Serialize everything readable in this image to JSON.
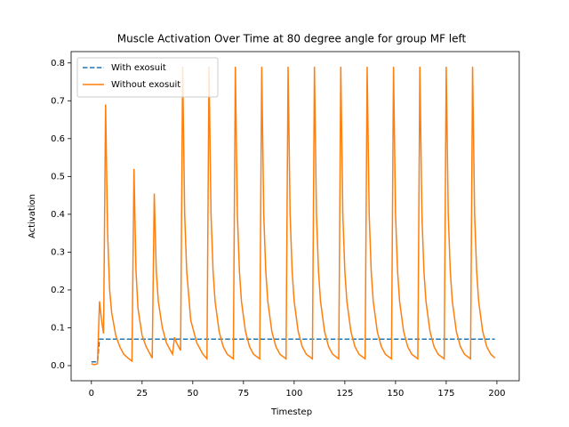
{
  "chart_data": {
    "type": "line",
    "title": "Muscle Activation Over Time at 80 degree angle for group MF left",
    "x_label": "Timestep",
    "y_label": "Activation",
    "xlim": [
      -10,
      211
    ],
    "ylim": [
      -0.04,
      0.83
    ],
    "xticks": [
      0,
      25,
      50,
      75,
      100,
      125,
      150,
      175,
      200
    ],
    "yticks": [
      {
        "value": 0,
        "label": "0.0"
      },
      0.1,
      0.2,
      0.3,
      0.4,
      0.5,
      0.6,
      0.7,
      0.8
    ],
    "legend": "upper left",
    "series": [
      {
        "name": "With exosuit",
        "color": "#1f77b4",
        "dash": true,
        "x": [
          0,
          3,
          4,
          199
        ],
        "values": [
          0.01,
          0.01,
          0.07,
          0.07
        ]
      },
      {
        "name": "Without exosuit",
        "color": "#ff7f0e",
        "dash": false,
        "x": [
          0,
          1,
          2,
          3,
          4,
          5,
          6,
          7,
          8,
          9,
          10,
          12,
          14,
          16,
          18,
          20,
          21,
          22,
          23,
          25,
          27,
          30,
          31,
          32,
          33,
          35,
          37,
          40,
          41,
          42,
          44,
          45,
          46,
          47,
          49,
          52,
          55,
          57,
          58,
          59,
          60,
          61,
          63,
          65,
          67,
          70,
          71,
          72,
          73,
          74,
          76,
          78,
          80,
          83,
          84,
          85,
          86,
          87,
          89,
          91,
          93,
          96,
          97,
          98,
          99,
          100,
          102,
          104,
          106,
          109,
          110,
          111,
          112,
          113,
          115,
          117,
          119,
          122,
          123,
          124,
          125,
          126,
          128,
          130,
          132,
          135,
          136,
          137,
          138,
          139,
          141,
          143,
          145,
          148,
          149,
          150,
          151,
          152,
          154,
          156,
          158,
          161,
          162,
          163,
          164,
          165,
          167,
          169,
          171,
          174,
          175,
          176,
          177,
          178,
          180,
          182,
          184,
          187,
          188,
          189,
          190,
          191,
          193,
          195,
          197,
          199
        ],
        "values": [
          0.005,
          0.003,
          0.003,
          0.005,
          0.17,
          0.12,
          0.085,
          0.69,
          0.35,
          0.2,
          0.14,
          0.08,
          0.05,
          0.03,
          0.02,
          0.012,
          0.52,
          0.25,
          0.15,
          0.08,
          0.05,
          0.02,
          0.455,
          0.25,
          0.17,
          0.1,
          0.06,
          0.03,
          0.075,
          0.06,
          0.04,
          0.79,
          0.4,
          0.25,
          0.12,
          0.06,
          0.03,
          0.018,
          0.79,
          0.4,
          0.25,
          0.17,
          0.09,
          0.05,
          0.03,
          0.018,
          0.79,
          0.4,
          0.25,
          0.17,
          0.09,
          0.05,
          0.03,
          0.018,
          0.79,
          0.4,
          0.25,
          0.17,
          0.09,
          0.05,
          0.03,
          0.018,
          0.79,
          0.4,
          0.25,
          0.17,
          0.09,
          0.05,
          0.03,
          0.018,
          0.79,
          0.4,
          0.25,
          0.17,
          0.09,
          0.05,
          0.03,
          0.018,
          0.79,
          0.4,
          0.25,
          0.17,
          0.09,
          0.05,
          0.03,
          0.018,
          0.79,
          0.4,
          0.25,
          0.17,
          0.09,
          0.05,
          0.03,
          0.018,
          0.79,
          0.4,
          0.25,
          0.17,
          0.09,
          0.05,
          0.03,
          0.018,
          0.79,
          0.4,
          0.25,
          0.17,
          0.09,
          0.05,
          0.03,
          0.018,
          0.79,
          0.4,
          0.25,
          0.17,
          0.09,
          0.05,
          0.03,
          0.018,
          0.79,
          0.4,
          0.25,
          0.17,
          0.09,
          0.05,
          0.03,
          0.02
        ]
      }
    ]
  }
}
